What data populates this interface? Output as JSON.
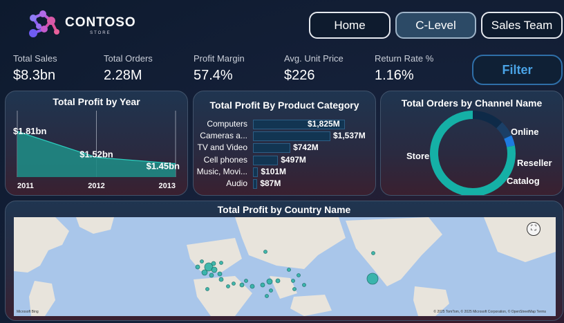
{
  "brand": {
    "name": "CONTOSO",
    "sub": "STORE"
  },
  "nav": {
    "home": "Home",
    "clevel": "C-Level",
    "sales_team": "Sales Team"
  },
  "kpis": [
    {
      "label": "Total Sales",
      "value": "$8.3bn"
    },
    {
      "label": "Total Orders",
      "value": "2.28M"
    },
    {
      "label": "Profit Margin",
      "value": "57.4%"
    },
    {
      "label": "Avg. Unit Price",
      "value": "$226"
    },
    {
      "label": "Return Rate %",
      "value": "1.16%"
    }
  ],
  "filter_label": "Filter",
  "profit_by_year": {
    "title": "Total Profit by Year",
    "chart_data": {
      "type": "area",
      "x": [
        "2011",
        "2012",
        "2013"
      ],
      "values": [
        1.81,
        1.52,
        1.45
      ],
      "data_labels": [
        "$1.81bn",
        "$1.52bn",
        "$1.45bn"
      ],
      "color": "#1f8a84"
    }
  },
  "profit_by_category": {
    "title": "Total Profit By Product Category",
    "chart_data": {
      "type": "bar",
      "categories": [
        "Computers",
        "Cameras a...",
        "TV and Video",
        "Cell phones",
        "Music, Movi...",
        "Audio"
      ],
      "values": [
        1825,
        1537,
        742,
        497,
        101,
        87
      ],
      "data_labels": [
        "$1,825M",
        "$1,537M",
        "$742M",
        "$497M",
        "$101M",
        "$87M"
      ],
      "color": "#123552"
    }
  },
  "orders_by_channel": {
    "title": "Total Orders by Channel Name",
    "chart_data": {
      "type": "pie",
      "categories": [
        "Store",
        "Online",
        "Reseller",
        "Catalog"
      ],
      "values": [
        0.78,
        0.12,
        0.06,
        0.04
      ],
      "colors": [
        "#15b0a6",
        "#0e2a48",
        "#1b3f66",
        "#1e7be0"
      ]
    }
  },
  "profit_by_country": {
    "title": "Total Profit by Country Name",
    "attribution_left": "Microsoft Bing",
    "attribution_right": "© 2025 TomTom, © 2025 Microsoft Corporation, © OpenStreetMap  Terms"
  }
}
